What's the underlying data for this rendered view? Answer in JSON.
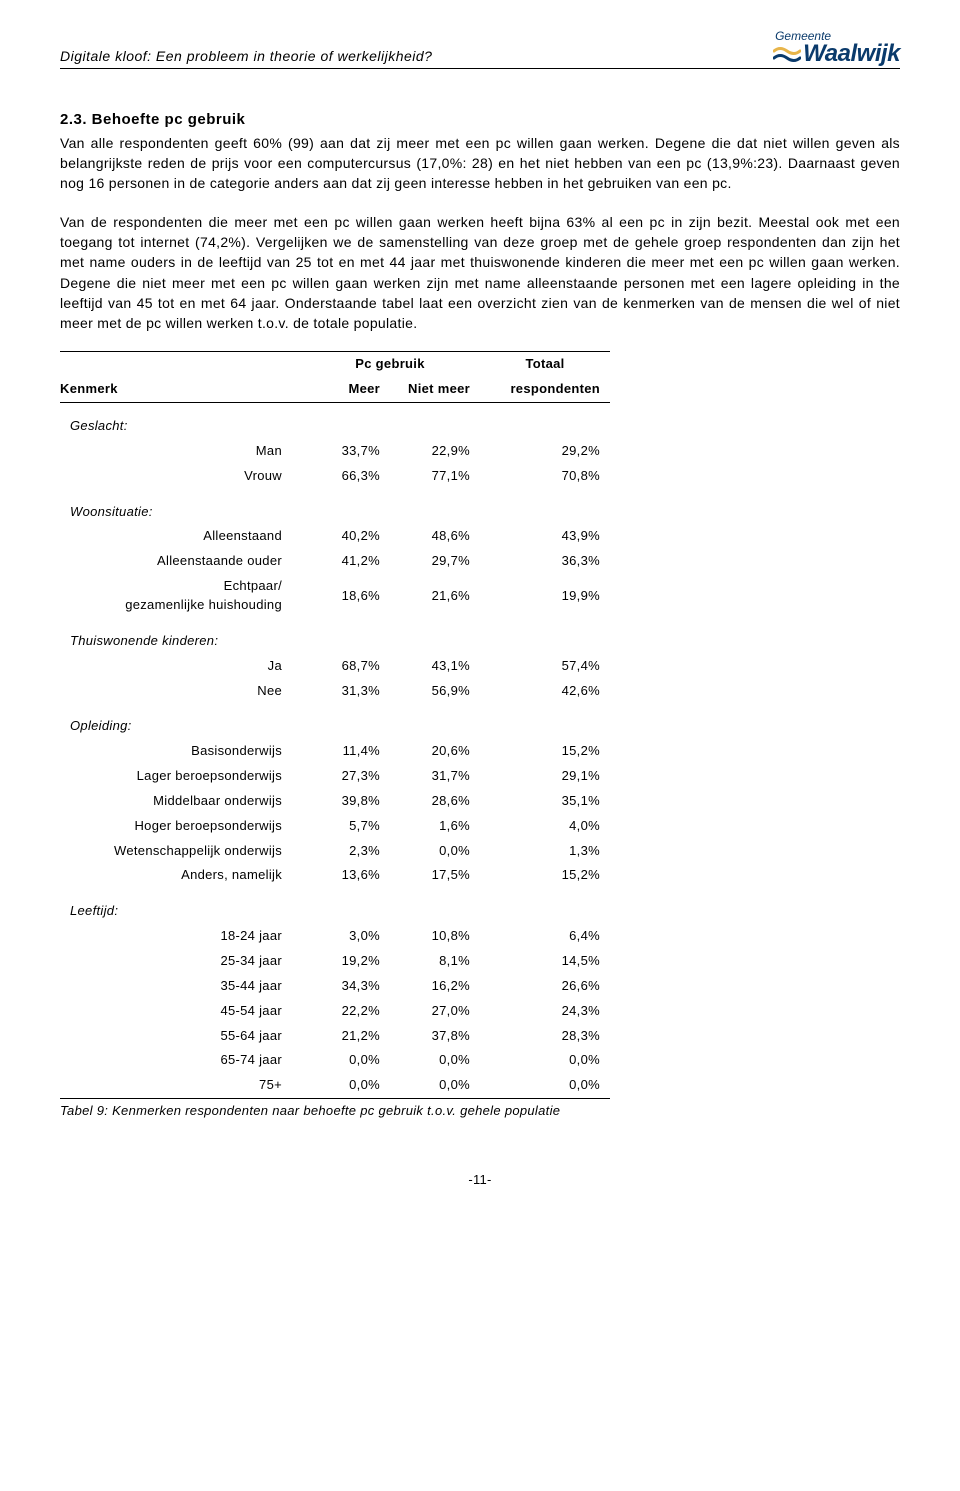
{
  "header": {
    "doc_title": "Digitale kloof: Een probleem in theorie of werkelijkheid?",
    "logo_top": "Gemeente",
    "logo_main": "Waalwijk",
    "wave_top_color": "#e8b54a",
    "wave_bottom_color": "#0a3a6b"
  },
  "section": {
    "heading": "2.3. Behoefte pc gebruik",
    "para1": "Van alle respondenten geeft 60% (99) aan dat zij meer met een pc willen gaan werken. Degene die dat niet willen geven als belangrijkste reden de prijs voor een computercursus (17,0%: 28) en het niet hebben van een pc (13,9%:23). Daarnaast geven nog 16 personen in de categorie anders aan dat zij geen interesse hebben in het gebruiken van een pc.",
    "para2": "Van de respondenten die meer met een pc willen gaan werken heeft bijna 63% al een pc in zijn bezit. Meestal ook met een toegang tot internet (74,2%). Vergelijken we de samenstelling van deze groep met de gehele groep respondenten dan zijn het met name ouders in de leeftijd van 25 tot en met 44 jaar met thuiswonende kinderen die meer met een pc willen gaan werken. Degene die niet meer met een pc willen gaan werken zijn met name alleenstaande personen met een lagere opleiding in the leeftijd van 45 tot en met 64 jaar. Onderstaande tabel laat een overzicht zien van de kenmerken van de mensen die wel of niet meer met de pc willen werken t.o.v. de totale populatie."
  },
  "table": {
    "header": {
      "col_kenmerk": "Kenmerk",
      "group_pc": "Pc gebruik",
      "col_meer": "Meer",
      "col_nietmeer": "Niet meer",
      "group_totaal": "Totaal",
      "col_resp": "respondenten"
    },
    "groups": [
      {
        "label": "Geslacht:",
        "rows": [
          {
            "name": "Man",
            "meer": "33,7%",
            "niet": "22,9%",
            "tot": "29,2%"
          },
          {
            "name": "Vrouw",
            "meer": "66,3%",
            "niet": "77,1%",
            "tot": "70,8%"
          }
        ]
      },
      {
        "label": "Woonsituatie:",
        "rows": [
          {
            "name": "Alleenstaand",
            "meer": "40,2%",
            "niet": "48,6%",
            "tot": "43,9%"
          },
          {
            "name": "Alleenstaande ouder",
            "meer": "41,2%",
            "niet": "29,7%",
            "tot": "36,3%"
          },
          {
            "name": "Echtpaar/\ngezamenlijke huishouding",
            "meer": "18,6%",
            "niet": "21,6%",
            "tot": "19,9%"
          }
        ]
      },
      {
        "label": "Thuiswonende kinderen:",
        "rows": [
          {
            "name": "Ja",
            "meer": "68,7%",
            "niet": "43,1%",
            "tot": "57,4%"
          },
          {
            "name": "Nee",
            "meer": "31,3%",
            "niet": "56,9%",
            "tot": "42,6%"
          }
        ]
      },
      {
        "label": "Opleiding:",
        "rows": [
          {
            "name": "Basisonderwijs",
            "meer": "11,4%",
            "niet": "20,6%",
            "tot": "15,2%"
          },
          {
            "name": "Lager beroepsonderwijs",
            "meer": "27,3%",
            "niet": "31,7%",
            "tot": "29,1%"
          },
          {
            "name": "Middelbaar onderwijs",
            "meer": "39,8%",
            "niet": "28,6%",
            "tot": "35,1%"
          },
          {
            "name": "Hoger beroepsonderwijs",
            "meer": "5,7%",
            "niet": "1,6%",
            "tot": "4,0%"
          },
          {
            "name": "Wetenschappelijk onderwijs",
            "meer": "2,3%",
            "niet": "0,0%",
            "tot": "1,3%"
          },
          {
            "name": "Anders, namelijk",
            "meer": "13,6%",
            "niet": "17,5%",
            "tot": "15,2%"
          }
        ]
      },
      {
        "label": "Leeftijd:",
        "rows": [
          {
            "name": "18-24 jaar",
            "meer": "3,0%",
            "niet": "10,8%",
            "tot": "6,4%"
          },
          {
            "name": "25-34 jaar",
            "meer": "19,2%",
            "niet": "8,1%",
            "tot": "14,5%"
          },
          {
            "name": "35-44 jaar",
            "meer": "34,3%",
            "niet": "16,2%",
            "tot": "26,6%"
          },
          {
            "name": "45-54 jaar",
            "meer": "22,2%",
            "niet": "27,0%",
            "tot": "24,3%"
          },
          {
            "name": "55-64 jaar",
            "meer": "21,2%",
            "niet": "37,8%",
            "tot": "28,3%"
          },
          {
            "name": "65-74 jaar",
            "meer": "0,0%",
            "niet": "0,0%",
            "tot": "0,0%"
          },
          {
            "name": "75+",
            "meer": "0,0%",
            "niet": "0,0%",
            "tot": "0,0%"
          }
        ]
      }
    ],
    "caption": "Tabel 9: Kenmerken respondenten naar behoefte pc gebruik t.o.v. gehele populatie"
  },
  "page_number": "-11-"
}
